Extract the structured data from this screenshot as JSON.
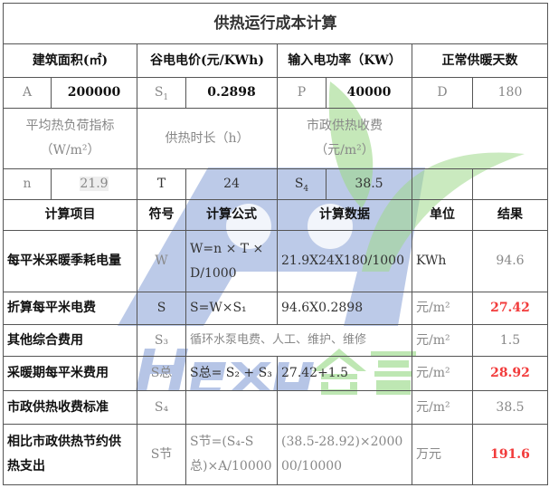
{
  "title": "供热运行成本计算",
  "headers": [
    "建筑面积(㎡)",
    "谷电电价(元/KWh)",
    "输入电功率（KW）",
    "正常供暖天数"
  ],
  "params1": [
    {
      "sym": "A",
      "val": "200000"
    },
    {
      "sym": "S",
      "sub": "1",
      "val": "0.2898"
    },
    {
      "sym": "P",
      "val": "40000"
    },
    {
      "sym": "D",
      "val": "180"
    }
  ],
  "labels2": [
    "平均热负荷指标（W/m²）",
    "供热时长（h）",
    "市政供热收费（元/m²）"
  ],
  "params2": [
    {
      "sym": "n",
      "val": "21.9"
    },
    {
      "sym": "T",
      "val": "24"
    },
    {
      "sym": "S",
      "sub": "4",
      "val": "38.5"
    }
  ],
  "calc_headers": [
    "计算项目",
    "符号",
    "计算公式",
    "计算数据",
    "单位",
    "结果"
  ],
  "rows": [
    {
      "item": "每平米采暖季耗电量",
      "sym": "W",
      "formula": "W=n × T × D/1000",
      "data": "21.9X24X180/1000",
      "unit": "KWh",
      "result": "94.6"
    },
    {
      "item": "折算每平米电费",
      "sym": "S",
      "formula": "S=W×S₁",
      "data": "94.6X0.2898",
      "unit": "元/m²",
      "result": "27.42"
    },
    {
      "item": "其他综合费用",
      "sym": "S₃",
      "formula": "循环水泵电费、人工、维护、维修",
      "data": "",
      "unit": "元/m²",
      "result": "1.5"
    },
    {
      "item": "采暖期每平米费用",
      "sym": "S总",
      "formula": "S总= S₂ + S₃",
      "data": "27.42+1.5",
      "unit": "元/m²",
      "result": "28.92"
    },
    {
      "item": "市政供热收费标准",
      "sym": "S₄",
      "formula": "",
      "data": "",
      "unit": "元/m²",
      "result": "38.5"
    },
    {
      "item": "相比市政供热节约供热支出",
      "sym": "S节",
      "formula": "S节=(S₄-S总)×A/10000",
      "data": "(38.5-28.92)×200000/10000",
      "unit": "万元",
      "result": "191.6"
    }
  ],
  "watermark": "Hexu合蓄",
  "colors": {
    "highlight": "#f23b3b",
    "watermark_blue": "#8fa6d8",
    "watermark_green": "#9fd98a"
  }
}
